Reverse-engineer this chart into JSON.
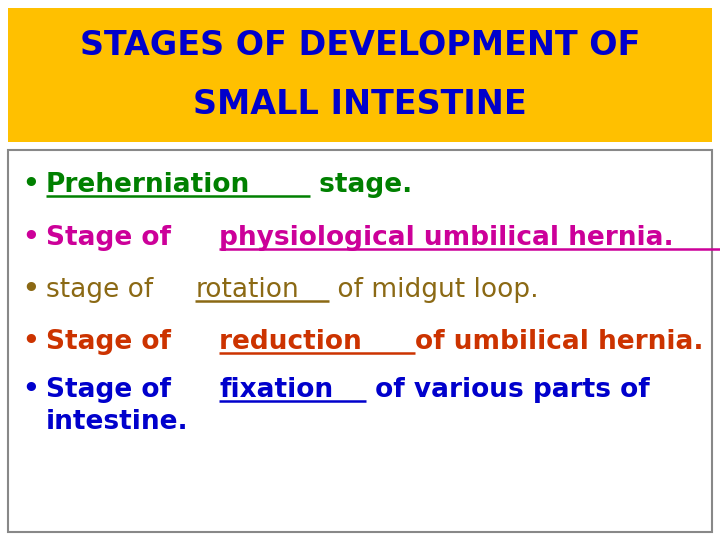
{
  "title_line1": "STAGES OF DEVELOPMENT OF",
  "title_line2": "SMALL INTESTINE",
  "title_bg_color": "#FFC000",
  "title_text_color": "#0000CC",
  "bg_color": "#FFFFFF",
  "box_border_color": "#888888",
  "bullet_items": [
    {
      "prefix": "",
      "underlined": "Preherniation",
      "suffix": " stage.",
      "color": "#008000",
      "bold": true,
      "line2": ""
    },
    {
      "prefix": "Stage of ",
      "underlined": "physiological umbilical hernia.",
      "suffix": "",
      "color": "#CC0099",
      "bold": true,
      "line2": ""
    },
    {
      "prefix": "stage of ",
      "underlined": "rotation",
      "suffix": " of midgut loop.",
      "color": "#8B6914",
      "bold": false,
      "line2": ""
    },
    {
      "prefix": "Stage of ",
      "underlined": "reduction ",
      "suffix": "of umbilical hernia.",
      "color": "#CC3300",
      "bold": true,
      "line2": ""
    },
    {
      "prefix": "Stage of ",
      "underlined": "fixation",
      "suffix": " of various parts of",
      "color": "#0000CC",
      "bold": true,
      "line2": "intestine."
    }
  ],
  "title_fontsize": 24,
  "body_fontsize": 19,
  "fig_width": 7.2,
  "fig_height": 5.4,
  "dpi": 100
}
